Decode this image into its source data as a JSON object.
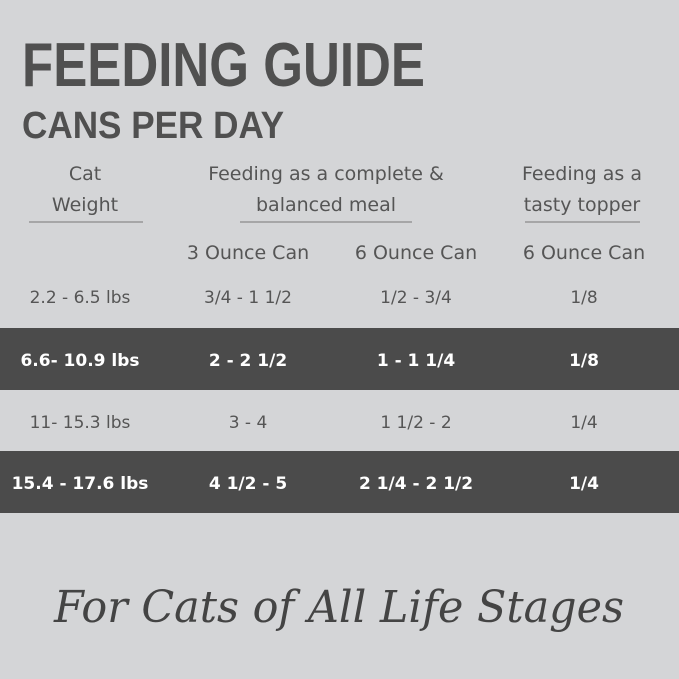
{
  "header": {
    "title": "FEEDING GUIDE",
    "subtitle": "CANS PER DAY"
  },
  "table": {
    "columns": [
      [
        "Cat",
        "Weight"
      ],
      [
        "Feeding as a complete &",
        "balanced meal"
      ],
      [
        "Feeding as a",
        "tasty topper"
      ]
    ],
    "subheaders": [
      "3 Ounce Can",
      "6 Ounce Can",
      "6 Ounce Can"
    ],
    "rows": [
      [
        "2.2 - 6.5 lbs",
        "3/4 - 1 1/2",
        "1/2 - 3/4",
        "1/8"
      ],
      [
        "6.6- 10.9 lbs",
        "2 - 2 1/2",
        "1 - 1 1/4",
        "1/8"
      ],
      [
        "11- 15.3 lbs",
        "3 - 4",
        "1 1/2 - 2",
        "1/4"
      ],
      [
        "15.4 - 17.6 lbs",
        "4 1/2 - 5",
        "2 1/4 - 2 1/2",
        "1/4"
      ]
    ]
  },
  "footer": "For Cats of All Life Stages"
}
